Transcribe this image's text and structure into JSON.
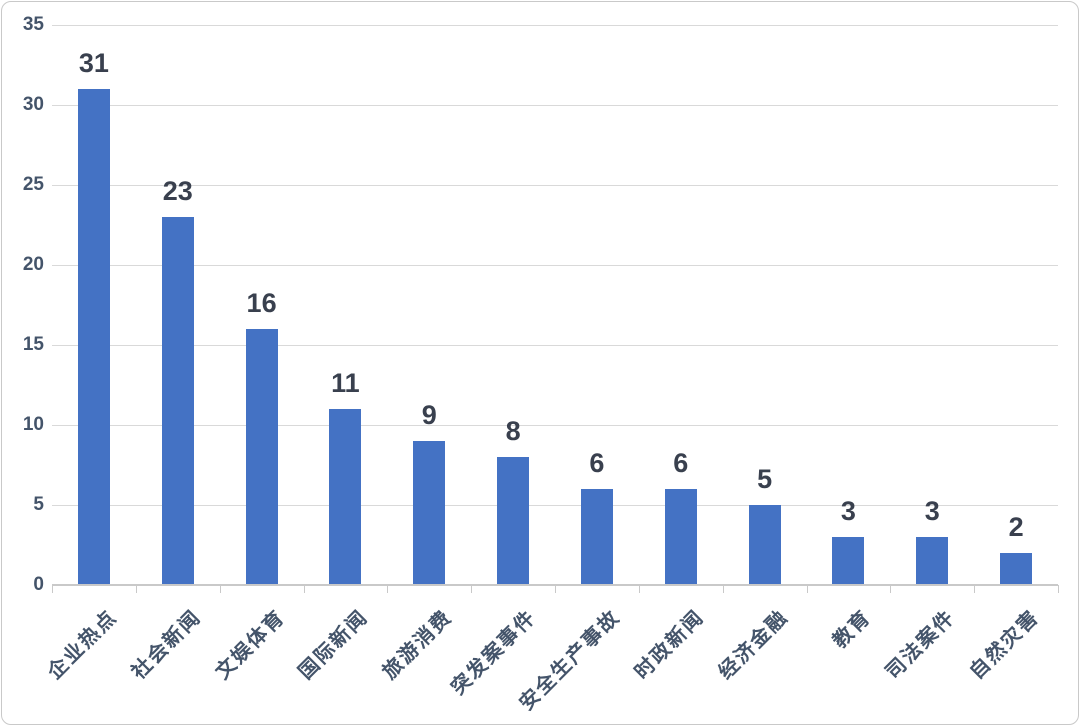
{
  "chart_data": {
    "type": "bar",
    "title": "",
    "xlabel": "",
    "ylabel": "",
    "categories": [
      "企业热点",
      "社会新闻",
      "文娱体育",
      "国际新闻",
      "旅游消费",
      "突发案事件",
      "安全生产事故",
      "时政新闻",
      "经济金融",
      "教育",
      "司法案件",
      "自然灾害"
    ],
    "values": [
      31,
      23,
      16,
      11,
      9,
      8,
      6,
      6,
      5,
      3,
      3,
      2
    ],
    "ylim": [
      0,
      35
    ],
    "yticks": [
      0,
      5,
      10,
      15,
      20,
      25,
      30,
      35
    ],
    "grid": true,
    "legend": "none",
    "data_labels": true,
    "category_label_rotation_deg": -45,
    "colors": {
      "bar": "#4472C4",
      "gridline": "#d9d9d9",
      "axis_line": "#c9c9c9",
      "y_tick_label": "#44546a",
      "value_label": "#39404e",
      "category_label": "#44546a",
      "frame_border": "#c9c9c9",
      "background": "#ffffff"
    }
  }
}
